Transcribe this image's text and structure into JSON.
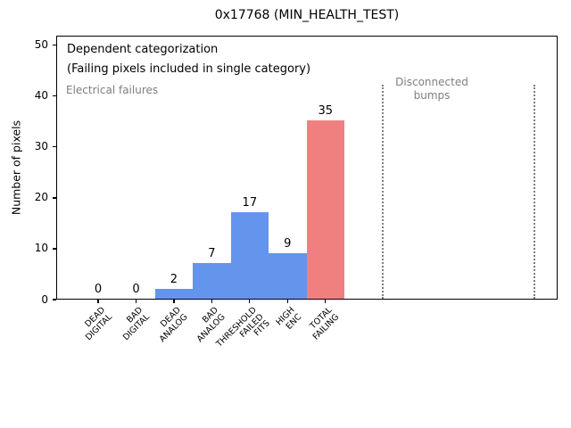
{
  "title": "0x17768 (MIN_HEALTH_TEST)",
  "chart_data": {
    "type": "bar",
    "title": "0x17768 (MIN_HEALTH_TEST)",
    "ylabel": "Number of pixels",
    "xlabel": "",
    "ylim": [
      0,
      52
    ],
    "yticks": [
      0,
      10,
      20,
      30,
      40,
      50
    ],
    "categories": [
      "DEAD DIGITAL",
      "BAD DIGITAL",
      "DEAD ANALOG",
      "BAD ANALOG",
      "THRESHOLD FAILED FITS",
      "HIGH ENC",
      "TOTAL FAILING"
    ],
    "category_lines": [
      [
        "DEAD",
        "DIGITAL"
      ],
      [
        "BAD",
        "DIGITAL"
      ],
      [
        "DEAD",
        "ANALOG"
      ],
      [
        "BAD",
        "ANALOG"
      ],
      [
        "THRESHOLD",
        "FAILED",
        "FITS"
      ],
      [
        "HIGH",
        "ENC"
      ],
      [
        "TOTAL",
        "FAILING"
      ]
    ],
    "values": [
      0,
      0,
      2,
      7,
      17,
      9,
      35
    ],
    "bar_labels": [
      "0",
      "0",
      "2",
      "7",
      "17",
      "9",
      "35"
    ],
    "bar_colors": [
      "#6495ED",
      "#6495ED",
      "#6495ED",
      "#6495ED",
      "#6495ED",
      "#6495ED",
      "#F08080"
    ],
    "grid": false,
    "legend": null,
    "annotations": [
      {
        "text": "Dependent categorization",
        "color": "#000000"
      },
      {
        "text": "(Failing pixels included in single category)",
        "color": "#000000"
      },
      {
        "text": "Electrical failures",
        "color": "#7f7f7f"
      },
      {
        "text": "Disconnected bumps",
        "lines": [
          "Disconnected",
          "bumps"
        ],
        "color": "#7f7f7f"
      }
    ],
    "vlines": {
      "slots": [
        7.5,
        11.5
      ],
      "style": "dotted",
      "color": "#7f7f7f",
      "top_value": 42
    }
  }
}
